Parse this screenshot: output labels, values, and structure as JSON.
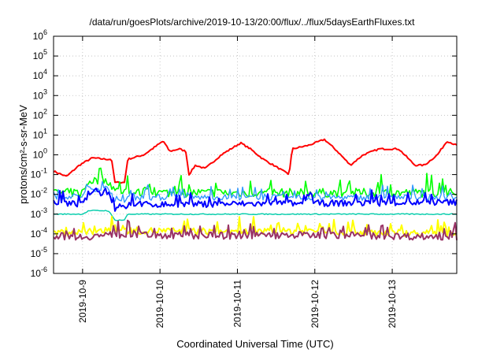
{
  "chart_data": {
    "type": "line",
    "title": "/data/run/goesPlots/archive/2019-10-13/20:00/flux/../flux/5daysEarthFluxes.txt",
    "xlabel": "Coordinated Universal Time (UTC)",
    "ylabel": "protons/cm²-s-sr-MeV",
    "y_scale": "log",
    "ylim": [
      1e-06,
      1000000.0
    ],
    "y_ticks": [
      {
        "base": "10",
        "exp": "-6",
        "value": 1e-06
      },
      {
        "base": "10",
        "exp": "-5",
        "value": 1e-05
      },
      {
        "base": "10",
        "exp": "-4",
        "value": 0.0001
      },
      {
        "base": "10",
        "exp": "-3",
        "value": 0.001
      },
      {
        "base": "10",
        "exp": "-2",
        "value": 0.01
      },
      {
        "base": "10",
        "exp": "-1",
        "value": 0.1
      },
      {
        "base": "10",
        "exp": "0",
        "value": 1
      },
      {
        "base": "10",
        "exp": "1",
        "value": 10
      },
      {
        "base": "10",
        "exp": "2",
        "value": 100
      },
      {
        "base": "10",
        "exp": "3",
        "value": 1000
      },
      {
        "base": "10",
        "exp": "4",
        "value": 10000
      },
      {
        "base": "10",
        "exp": "5",
        "value": 100000
      },
      {
        "base": "10",
        "exp": "6",
        "value": 1000000
      }
    ],
    "xlim": [
      "2019-10-08T15:00",
      "2019-10-13T20:00"
    ],
    "x_ticks": [
      {
        "label": "2019-10-9",
        "date": "2019-10-09T00:00"
      },
      {
        "label": "2019-10-10",
        "date": "2019-10-10T00:00"
      },
      {
        "label": "2019-10-11",
        "date": "2019-10-11T00:00"
      },
      {
        "label": "2019-10-12",
        "date": "2019-10-12T00:00"
      },
      {
        "label": "2019-10-13",
        "date": "2019-10-13T00:00"
      }
    ],
    "grid": true,
    "series": [
      {
        "color": "#ff0000",
        "width": 2,
        "noise": 0.08,
        "points": [
          [
            "2019-10-08T15:00",
            0.15
          ],
          [
            "2019-10-08T19:00",
            0.08
          ],
          [
            "2019-10-08T23:00",
            0.3
          ],
          [
            "2019-10-09T03:00",
            0.7
          ],
          [
            "2019-10-09T07:00",
            0.6
          ],
          [
            "2019-10-09T09:00",
            0.6
          ],
          [
            "2019-10-09T10:00",
            0.04
          ],
          [
            "2019-10-09T13:00",
            0.04
          ],
          [
            "2019-10-09T14:00",
            0.6
          ],
          [
            "2019-10-09T19:00",
            1.0
          ],
          [
            "2019-10-10T01:00",
            5
          ],
          [
            "2019-10-10T03:00",
            1.5
          ],
          [
            "2019-10-10T06:00",
            2
          ],
          [
            "2019-10-10T08:00",
            1.5
          ],
          [
            "2019-10-10T09:00",
            0.1
          ],
          [
            "2019-10-10T11:00",
            0.3
          ],
          [
            "2019-10-10T14:00",
            0.2
          ],
          [
            "2019-10-10T19:00",
            1
          ],
          [
            "2019-10-11T01:00",
            4
          ],
          [
            "2019-10-11T04:00",
            2
          ],
          [
            "2019-10-11T08:00",
            0.6
          ],
          [
            "2019-10-11T13:00",
            0.2
          ],
          [
            "2019-10-11T16:00",
            0.1
          ],
          [
            "2019-10-11T17:00",
            2
          ],
          [
            "2019-10-11T22:00",
            3
          ],
          [
            "2019-10-12T03:00",
            6
          ],
          [
            "2019-10-12T07:00",
            1.5
          ],
          [
            "2019-10-12T11:00",
            0.3
          ],
          [
            "2019-10-12T15:00",
            1
          ],
          [
            "2019-10-12T20:00",
            2
          ],
          [
            "2019-10-13T02:00",
            2
          ],
          [
            "2019-10-13T07:00",
            0.3
          ],
          [
            "2019-10-13T10:00",
            0.3
          ],
          [
            "2019-10-13T14:00",
            1
          ],
          [
            "2019-10-13T17:00",
            5
          ],
          [
            "2019-10-13T20:00",
            3
          ]
        ]
      },
      {
        "color": "#00ff00",
        "width": 1.6,
        "noise": 0.45,
        "points": [
          [
            "2019-10-08T15:00",
            0.012
          ],
          [
            "2019-10-09T00:00",
            0.012
          ],
          [
            "2019-10-09T02:00",
            0.05
          ],
          [
            "2019-10-09T08:00",
            0.05
          ],
          [
            "2019-10-09T10:00",
            0.015
          ],
          [
            "2019-10-09T13:00",
            0.015
          ],
          [
            "2019-10-09T14:00",
            0.012
          ],
          [
            "2019-10-13T20:00",
            0.012
          ]
        ]
      },
      {
        "color": "#3399ff",
        "width": 1.4,
        "noise": 0.3,
        "points": [
          [
            "2019-10-08T15:00",
            0.008
          ],
          [
            "2019-10-09T00:00",
            0.008
          ],
          [
            "2019-10-09T02:00",
            0.02
          ],
          [
            "2019-10-09T08:00",
            0.02
          ],
          [
            "2019-10-09T10:00",
            0.004
          ],
          [
            "2019-10-09T13:00",
            0.004
          ],
          [
            "2019-10-09T14:00",
            0.007
          ],
          [
            "2019-10-13T20:00",
            0.007
          ]
        ]
      },
      {
        "color": "#0000ff",
        "width": 2,
        "noise": 0.32,
        "points": [
          [
            "2019-10-08T15:00",
            0.004
          ],
          [
            "2019-10-09T00:00",
            0.003
          ],
          [
            "2019-10-09T02:00",
            0.012
          ],
          [
            "2019-10-09T08:00",
            0.012
          ],
          [
            "2019-10-09T10:00",
            0.002
          ],
          [
            "2019-10-09T13:00",
            0.002
          ],
          [
            "2019-10-09T14:00",
            0.003
          ],
          [
            "2019-10-13T20:00",
            0.004
          ]
        ]
      },
      {
        "color": "#00ccaa",
        "width": 1.4,
        "noise": 0.05,
        "points": [
          [
            "2019-10-08T15:00",
            0.001
          ],
          [
            "2019-10-09T00:00",
            0.001
          ],
          [
            "2019-10-09T02:00",
            0.0015
          ],
          [
            "2019-10-09T08:00",
            0.0015
          ],
          [
            "2019-10-09T10:00",
            0.0005
          ],
          [
            "2019-10-09T13:00",
            0.0005
          ],
          [
            "2019-10-09T14:00",
            0.001
          ],
          [
            "2019-10-13T20:00",
            0.001
          ]
        ]
      },
      {
        "color": "#ffff00",
        "width": 2,
        "noise": 0.35,
        "points": [
          [
            "2019-10-08T15:00",
            0.00012
          ],
          [
            "2019-10-09T00:00",
            0.00012
          ],
          [
            "2019-10-09T09:00",
            0.00015
          ],
          [
            "2019-10-11T00:00",
            0.00013
          ],
          [
            "2019-10-12T00:00",
            0.00014
          ],
          [
            "2019-10-13T20:00",
            0.0001
          ]
        ]
      },
      {
        "color": "#993366",
        "width": 2,
        "noise": 0.35,
        "points": [
          [
            "2019-10-08T15:00",
            8e-05
          ],
          [
            "2019-10-09T00:00",
            7e-05
          ],
          [
            "2019-10-09T09:00",
            9e-05
          ],
          [
            "2019-10-11T00:00",
            8e-05
          ],
          [
            "2019-10-12T00:00",
            9e-05
          ],
          [
            "2019-10-13T20:00",
            7e-05
          ]
        ]
      }
    ]
  }
}
